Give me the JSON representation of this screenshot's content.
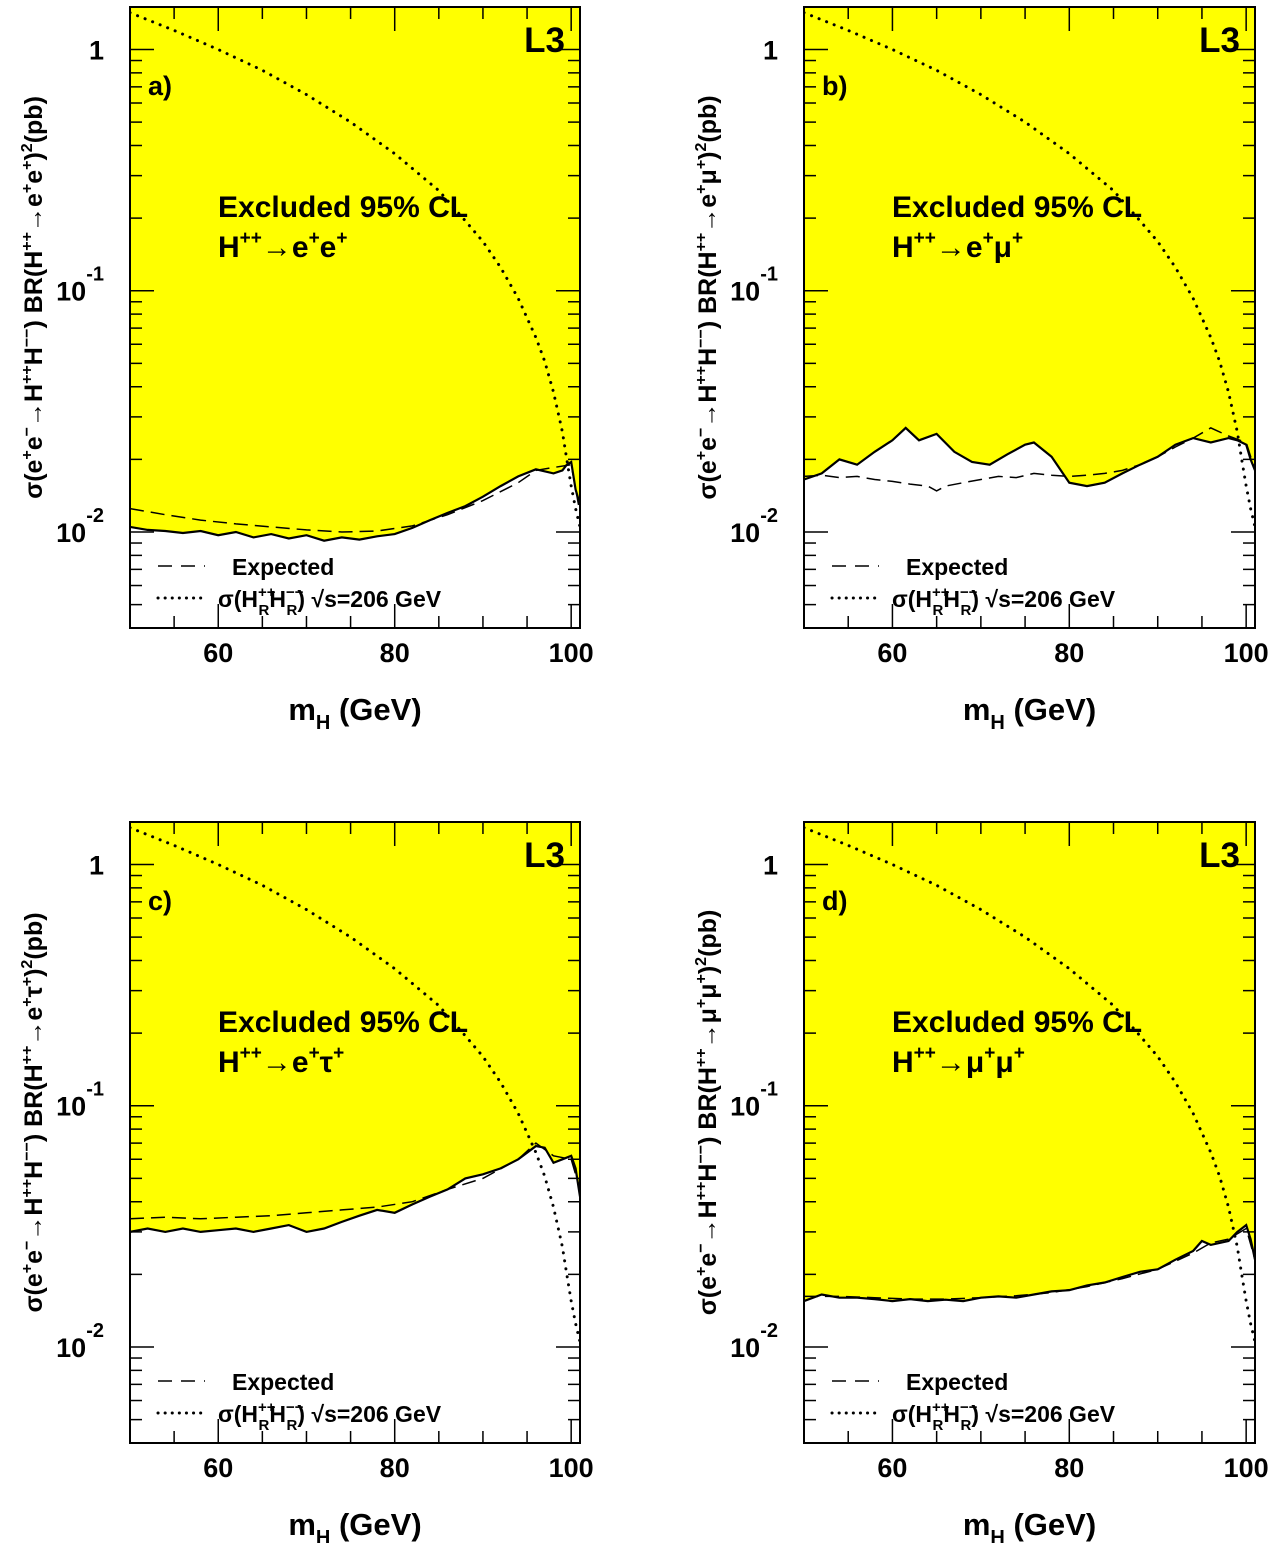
{
  "colors": {
    "excluded": "#ffff00",
    "frame": "#000000",
    "background": "#ffffff"
  },
  "chart_data": [
    {
      "type": "line",
      "panel": "a)",
      "experiment": "L3",
      "title": "Excluded 95% CL",
      "channel": {
        "base": "H",
        "sup": "++",
        "arrow": "→",
        "p1": "e",
        "p1sup": "+",
        "p2": "e",
        "p2sup": "+"
      },
      "ylabel": "σ(e+e−→H++H−−) BR(H++→e+e+)²(pb)",
      "ylabel_channel": "e+e+",
      "xlabel": "m_H (GeV)",
      "x_ticks": [
        60,
        80,
        100
      ],
      "y_ticks": [
        "10^-2",
        "10^-1",
        "1"
      ],
      "xlim": [
        50,
        101
      ],
      "ylim": [
        0.004,
        1.5
      ],
      "yscale": "log",
      "legend": [
        {
          "style": "dashed",
          "label": "Expected"
        },
        {
          "style": "dotted",
          "label": "σ(H_R++ H_R−−) √s=206 GeV"
        }
      ],
      "observed": {
        "x": [
          50,
          52,
          54,
          56,
          58,
          60,
          62,
          64,
          66,
          68,
          70,
          72,
          74,
          76,
          78,
          80,
          82,
          84,
          86,
          88,
          90,
          92,
          94,
          96,
          98,
          99,
          99.5,
          100,
          100.5,
          101
        ],
        "y": [
          0.0105,
          0.0102,
          0.0101,
          0.0099,
          0.0101,
          0.0097,
          0.01,
          0.0095,
          0.0098,
          0.0094,
          0.0097,
          0.0092,
          0.0095,
          0.0093,
          0.0096,
          0.0098,
          0.0104,
          0.0112,
          0.012,
          0.0128,
          0.014,
          0.0155,
          0.017,
          0.0182,
          0.0175,
          0.018,
          0.019,
          0.0195,
          0.015,
          0.013
        ]
      },
      "expected": {
        "x": [
          50,
          54,
          58,
          62,
          66,
          70,
          74,
          78,
          82,
          86,
          90,
          94,
          96,
          98,
          100,
          101
        ],
        "y": [
          0.0125,
          0.0118,
          0.0112,
          0.0108,
          0.0105,
          0.0102,
          0.01,
          0.0101,
          0.0106,
          0.0118,
          0.0135,
          0.016,
          0.018,
          0.0185,
          0.019,
          0.012
        ]
      },
      "theory": {
        "x": [
          50,
          55,
          60,
          65,
          70,
          75,
          80,
          85,
          88,
          90,
          92,
          94,
          96,
          97,
          98,
          99,
          99.5,
          100,
          100.5,
          101
        ],
        "y": [
          1.42,
          1.2,
          1.0,
          0.82,
          0.65,
          0.5,
          0.37,
          0.26,
          0.195,
          0.16,
          0.125,
          0.093,
          0.064,
          0.051,
          0.038,
          0.026,
          0.02,
          0.0155,
          0.0125,
          0.0105
        ]
      }
    },
    {
      "type": "line",
      "panel": "b)",
      "experiment": "L3",
      "title": "Excluded 95% CL",
      "channel": {
        "base": "H",
        "sup": "++",
        "arrow": "→",
        "p1": "e",
        "p1sup": "+",
        "p2": "μ",
        "p2sup": "+"
      },
      "ylabel": "σ(e+e−→H++H−−) BR(H++→e+μ+)²(pb)",
      "ylabel_channel": "e+μ+",
      "xlabel": "m_H (GeV)",
      "x_ticks": [
        60,
        80,
        100
      ],
      "y_ticks": [
        "10^-2",
        "10^-1",
        "1"
      ],
      "xlim": [
        50,
        101
      ],
      "ylim": [
        0.004,
        1.5
      ],
      "yscale": "log",
      "legend": [
        {
          "style": "dashed",
          "label": "Expected"
        },
        {
          "style": "dotted",
          "label": "σ(H_R++ H_R−−) √s=206 GeV"
        }
      ],
      "observed": {
        "x": [
          50,
          52,
          54,
          56,
          58,
          60,
          61.5,
          63,
          65,
          67,
          69,
          71,
          73,
          75,
          76,
          78,
          80,
          82,
          84,
          86,
          88,
          90,
          92,
          94,
          96,
          98,
          99,
          100,
          100.5,
          101
        ],
        "y": [
          0.0165,
          0.0175,
          0.02,
          0.019,
          0.0215,
          0.024,
          0.027,
          0.024,
          0.0255,
          0.0215,
          0.0195,
          0.019,
          0.021,
          0.023,
          0.0235,
          0.0205,
          0.016,
          0.0155,
          0.016,
          0.0175,
          0.019,
          0.0205,
          0.023,
          0.0245,
          0.0235,
          0.0245,
          0.024,
          0.023,
          0.02,
          0.018
        ]
      },
      "expected": {
        "x": [
          50,
          52,
          54,
          56,
          58,
          60,
          62,
          64,
          65,
          66,
          68,
          70,
          72,
          74,
          76,
          78,
          80,
          82,
          84,
          86,
          88,
          90,
          92,
          94,
          96,
          98,
          100,
          101
        ],
        "y": [
          0.017,
          0.0172,
          0.0168,
          0.017,
          0.0165,
          0.0162,
          0.0158,
          0.0155,
          0.0148,
          0.0155,
          0.016,
          0.0165,
          0.017,
          0.0168,
          0.0175,
          0.0172,
          0.017,
          0.0172,
          0.0175,
          0.018,
          0.019,
          0.0205,
          0.0225,
          0.0245,
          0.027,
          0.025,
          0.0235,
          0.018
        ]
      },
      "theory": {
        "x": [
          50,
          55,
          60,
          65,
          70,
          75,
          80,
          85,
          88,
          90,
          92,
          94,
          96,
          97,
          98,
          99,
          99.5,
          100,
          100.5,
          101
        ],
        "y": [
          1.42,
          1.2,
          1.0,
          0.82,
          0.65,
          0.5,
          0.37,
          0.26,
          0.195,
          0.16,
          0.125,
          0.093,
          0.064,
          0.051,
          0.038,
          0.026,
          0.02,
          0.0155,
          0.0125,
          0.0105
        ]
      }
    },
    {
      "type": "line",
      "panel": "c)",
      "experiment": "L3",
      "title": "Excluded 95% CL",
      "channel": {
        "base": "H",
        "sup": "++",
        "arrow": "→",
        "p1": "e",
        "p1sup": "+",
        "p2": "τ",
        "p2sup": "+"
      },
      "ylabel": "σ(e+e−→H++H−−) BR(H++→e+τ+)²(pb)",
      "ylabel_channel": "e+τ+",
      "xlabel": "m_H (GeV)",
      "x_ticks": [
        60,
        80,
        100
      ],
      "y_ticks": [
        "10^-2",
        "10^-1",
        "1"
      ],
      "xlim": [
        50,
        101
      ],
      "ylim": [
        0.004,
        1.5
      ],
      "yscale": "log",
      "legend": [
        {
          "style": "dashed",
          "label": "Expected"
        },
        {
          "style": "dotted",
          "label": "σ(H_R++ H_R−−) √s=206 GeV"
        }
      ],
      "observed": {
        "x": [
          50,
          52,
          54,
          56,
          58,
          60,
          62,
          64,
          66,
          68,
          70,
          72,
          74,
          76,
          78,
          80,
          82,
          84,
          86,
          88,
          90,
          92,
          94,
          96,
          97,
          98,
          99,
          100,
          100.5,
          101
        ],
        "y": [
          0.03,
          0.031,
          0.03,
          0.031,
          0.03,
          0.0305,
          0.031,
          0.03,
          0.031,
          0.032,
          0.03,
          0.031,
          0.033,
          0.035,
          0.037,
          0.036,
          0.039,
          0.042,
          0.045,
          0.05,
          0.052,
          0.055,
          0.06,
          0.068,
          0.067,
          0.058,
          0.06,
          0.062,
          0.055,
          0.042
        ]
      },
      "expected": {
        "x": [
          50,
          54,
          58,
          62,
          66,
          70,
          74,
          78,
          82,
          86,
          90,
          94,
          96,
          98,
          100,
          101
        ],
        "y": [
          0.034,
          0.0345,
          0.034,
          0.0345,
          0.035,
          0.036,
          0.037,
          0.038,
          0.04,
          0.045,
          0.05,
          0.06,
          0.07,
          0.062,
          0.06,
          0.045
        ]
      },
      "theory": {
        "x": [
          50,
          55,
          60,
          65,
          70,
          75,
          80,
          85,
          88,
          90,
          92,
          94,
          96,
          97,
          98,
          99,
          99.5,
          100,
          100.5,
          101
        ],
        "y": [
          1.42,
          1.2,
          1.0,
          0.82,
          0.65,
          0.5,
          0.37,
          0.26,
          0.195,
          0.16,
          0.125,
          0.093,
          0.064,
          0.051,
          0.038,
          0.026,
          0.02,
          0.0155,
          0.0125,
          0.0105
        ]
      }
    },
    {
      "type": "line",
      "panel": "d)",
      "experiment": "L3",
      "title": "Excluded 95% CL",
      "channel": {
        "base": "H",
        "sup": "++",
        "arrow": "→",
        "p1": "μ",
        "p1sup": "+",
        "p2": "μ",
        "p2sup": "+"
      },
      "ylabel": "σ(e+e−→H++H−−) BR(H++→μ+μ+)²(pb)",
      "ylabel_channel": "μ+μ+",
      "xlabel": "m_H (GeV)",
      "x_ticks": [
        60,
        80,
        100
      ],
      "y_ticks": [
        "10^-2",
        "10^-1",
        "1"
      ],
      "xlim": [
        50,
        101
      ],
      "ylim": [
        0.004,
        1.5
      ],
      "yscale": "log",
      "legend": [
        {
          "style": "dashed",
          "label": "Expected"
        },
        {
          "style": "dotted",
          "label": "σ(H_R++ H_R−−) √s=206 GeV"
        }
      ],
      "observed": {
        "x": [
          50,
          52,
          54,
          56,
          58,
          60,
          62,
          64,
          66,
          68,
          70,
          72,
          74,
          76,
          78,
          80,
          82,
          84,
          86,
          88,
          90,
          92,
          94,
          95,
          96,
          98,
          99,
          100,
          100.5,
          101
        ],
        "y": [
          0.0155,
          0.0165,
          0.016,
          0.016,
          0.0158,
          0.0155,
          0.0158,
          0.0155,
          0.0157,
          0.0155,
          0.016,
          0.0162,
          0.016,
          0.0165,
          0.017,
          0.0172,
          0.018,
          0.0185,
          0.0195,
          0.0205,
          0.021,
          0.023,
          0.025,
          0.0275,
          0.0265,
          0.0275,
          0.03,
          0.032,
          0.028,
          0.023
        ]
      },
      "expected": {
        "x": [
          50,
          54,
          58,
          62,
          66,
          70,
          74,
          78,
          82,
          86,
          90,
          94,
          96,
          98,
          100,
          101
        ],
        "y": [
          0.0162,
          0.0162,
          0.016,
          0.0158,
          0.0158,
          0.016,
          0.0163,
          0.0168,
          0.0178,
          0.0192,
          0.021,
          0.0245,
          0.027,
          0.028,
          0.031,
          0.023
        ]
      },
      "theory": {
        "x": [
          50,
          55,
          60,
          65,
          70,
          75,
          80,
          85,
          88,
          90,
          92,
          94,
          96,
          97,
          98,
          99,
          99.5,
          100,
          100.5,
          101
        ],
        "y": [
          1.42,
          1.2,
          1.0,
          0.82,
          0.65,
          0.5,
          0.37,
          0.26,
          0.195,
          0.16,
          0.125,
          0.093,
          0.064,
          0.051,
          0.038,
          0.026,
          0.02,
          0.0155,
          0.0125,
          0.0105
        ]
      }
    }
  ]
}
